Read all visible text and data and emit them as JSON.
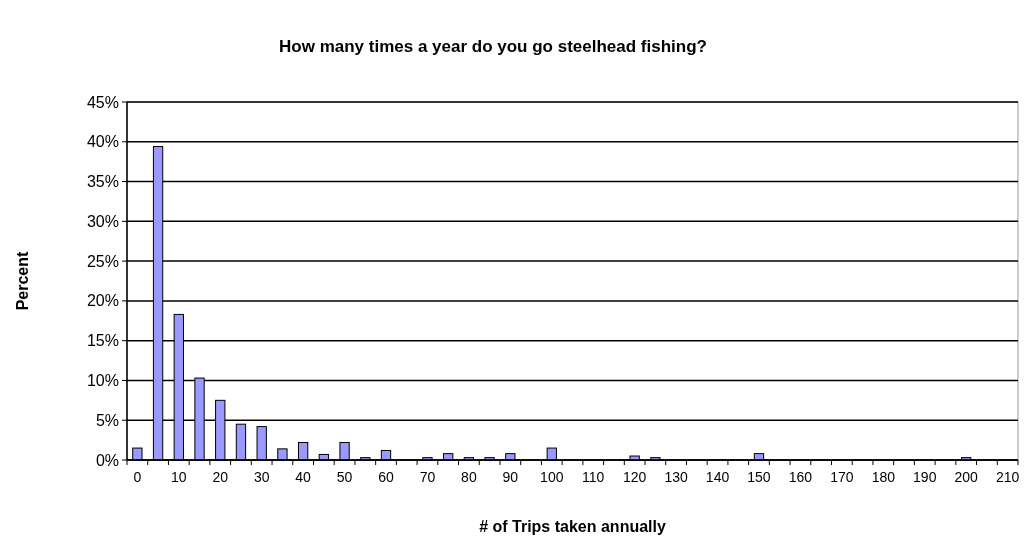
{
  "chart_data": {
    "type": "bar",
    "title": "How many times a year do you go steelhead fishing?",
    "xlabel": "# of Trips taken annually",
    "ylabel": "Percent",
    "categories": [
      "0",
      null,
      "10",
      null,
      "20",
      null,
      "30",
      null,
      "40",
      null,
      "50",
      null,
      "60",
      null,
      "70",
      null,
      "80",
      null,
      "90",
      null,
      "100",
      null,
      "110",
      null,
      "120",
      null,
      "130",
      null,
      "140",
      null,
      "150",
      null,
      "160",
      null,
      "170",
      null,
      "180",
      null,
      "190",
      null,
      "200",
      null,
      "210"
    ],
    "values": [
      1.5,
      39.4,
      18.3,
      10.3,
      7.5,
      4.5,
      4.2,
      1.4,
      2.2,
      0.7,
      2.2,
      0.3,
      1.2,
      0,
      0.3,
      0.8,
      0.3,
      0.3,
      0.8,
      0,
      1.5,
      0,
      0,
      0,
      0.5,
      0.3,
      0,
      0,
      0,
      0,
      0.8,
      0,
      0,
      0,
      0,
      0,
      0,
      0,
      0,
      0,
      0.3,
      0,
      0
    ],
    "color": "#9999ff",
    "ylim": [
      0,
      45
    ],
    "yticks": [
      {
        "value": 0,
        "label": "0%"
      },
      {
        "value": 5,
        "label": "5%"
      },
      {
        "value": 10,
        "label": "10%"
      },
      {
        "value": 15,
        "label": "15%"
      },
      {
        "value": 20,
        "label": "20%"
      },
      {
        "value": 25,
        "label": "25%"
      },
      {
        "value": 30,
        "label": "30%"
      },
      {
        "value": 35,
        "label": "35%"
      },
      {
        "value": 40,
        "label": "40%"
      },
      {
        "value": 45,
        "label": "45%"
      }
    ],
    "grid": "y"
  }
}
